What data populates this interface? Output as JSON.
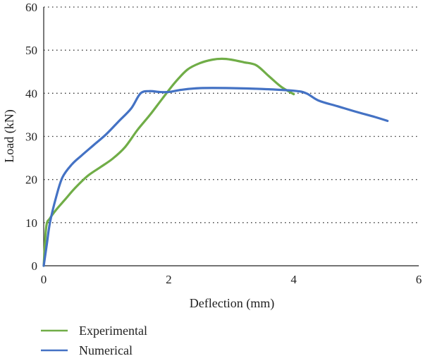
{
  "chart_data": {
    "type": "line",
    "xlabel": "Deflection (mm)",
    "ylabel": "Load (kN)",
    "xlim": [
      0,
      6
    ],
    "ylim": [
      0,
      60
    ],
    "xticks": [
      "0",
      "2",
      "4",
      "6"
    ],
    "yticks": [
      "0",
      "10",
      "20",
      "30",
      "40",
      "50",
      "60"
    ],
    "grid": "horizontal dotted",
    "legend_position": "bottom-left",
    "series": [
      {
        "name": "Experimental",
        "color": "#70ad47",
        "x": [
          0,
          0.04,
          0.1,
          0.2,
          0.35,
          0.5,
          0.7,
          0.9,
          1.1,
          1.3,
          1.5,
          1.7,
          1.9,
          2.1,
          2.3,
          2.5,
          2.7,
          2.85,
          3.0,
          3.2,
          3.4,
          3.6,
          3.8,
          4.0
        ],
        "y": [
          0,
          9,
          11,
          13,
          15.5,
          18,
          20.8,
          22.8,
          24.8,
          27.5,
          31.5,
          35,
          38.8,
          42.5,
          45.5,
          47,
          47.8,
          48,
          47.8,
          47.2,
          46.5,
          44,
          41.5,
          39.8
        ]
      },
      {
        "name": "Numerical",
        "color": "#4472c4",
        "x": [
          0,
          0.05,
          0.1,
          0.2,
          0.3,
          0.45,
          0.6,
          0.8,
          1.0,
          1.2,
          1.4,
          1.55,
          1.7,
          1.85,
          2.0,
          2.2,
          2.5,
          3.0,
          3.5,
          4.0,
          4.2,
          4.4,
          4.7,
          5.0,
          5.3,
          5.5
        ],
        "y": [
          0,
          5,
          10,
          16,
          20.5,
          23.5,
          25.5,
          28,
          30.5,
          33.5,
          36.5,
          40,
          40.5,
          40.3,
          40.3,
          40.8,
          41.2,
          41.2,
          41,
          40.6,
          40,
          38.3,
          37,
          35.7,
          34.5,
          33.6
        ]
      }
    ]
  }
}
